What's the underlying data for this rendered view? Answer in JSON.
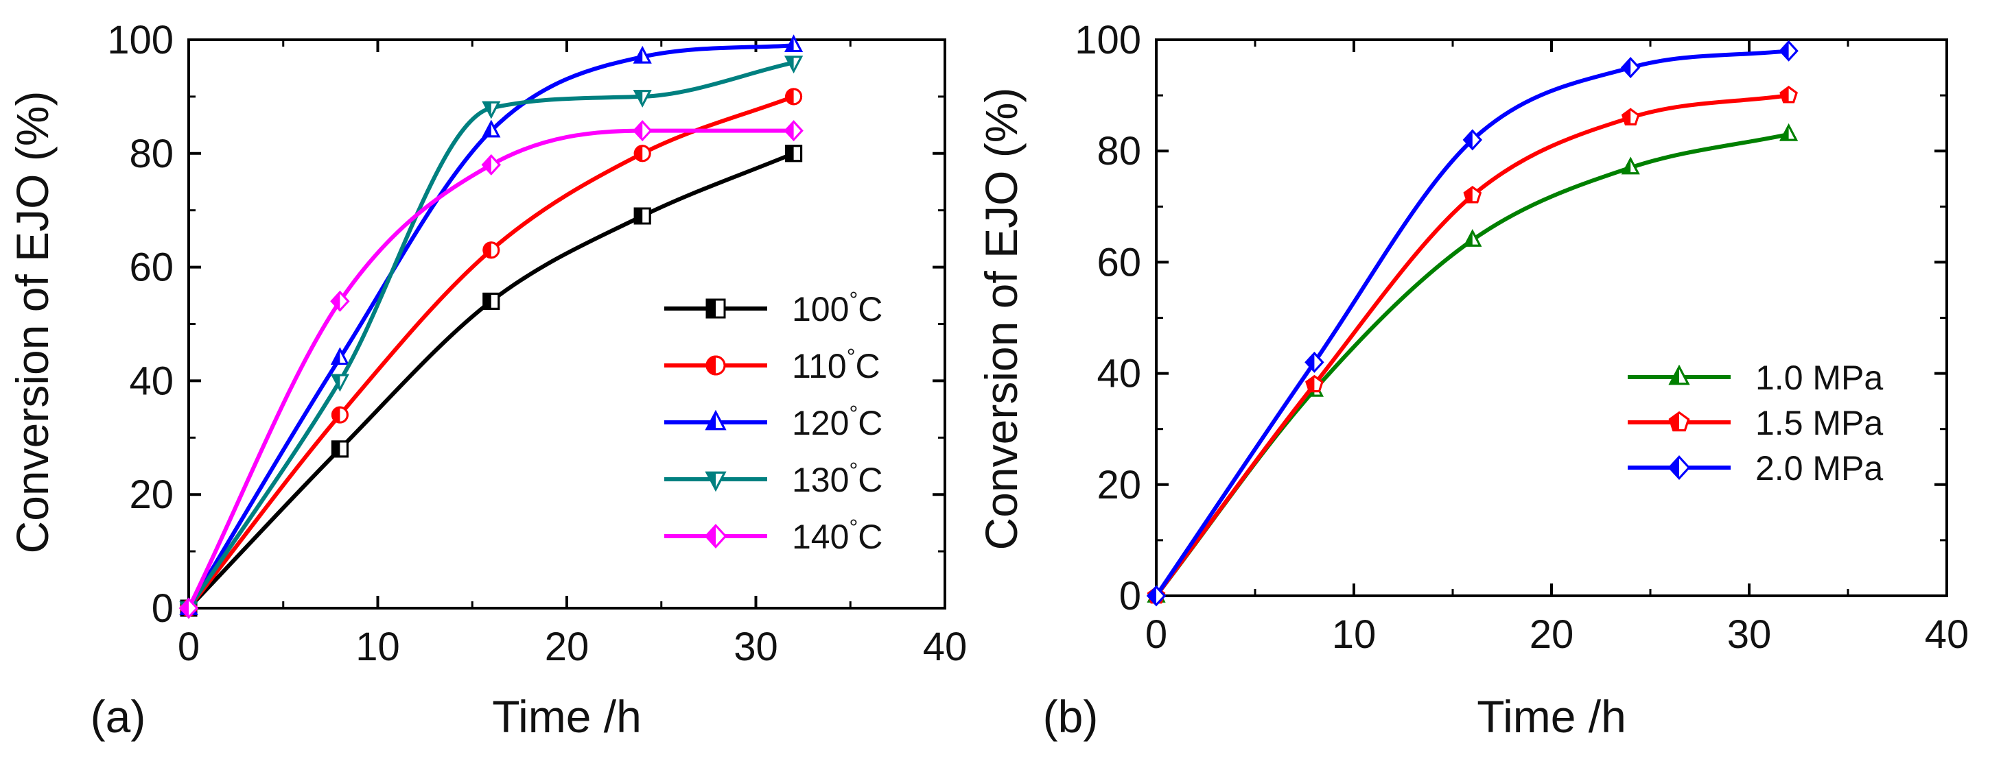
{
  "chart_data": [
    {
      "type": "scatter",
      "panel_label": "(a)",
      "xlabel": "Time /h",
      "ylabel": "Conversion of EJO (%)",
      "xlim": [
        0,
        40
      ],
      "ylim": [
        0,
        100
      ],
      "xticks": [
        0,
        10,
        20,
        30,
        40
      ],
      "yticks": [
        0,
        20,
        40,
        60,
        80,
        100
      ],
      "legend_position": "center-right",
      "series": [
        {
          "name": "100°C",
          "color": "#000000",
          "marker": "square-half",
          "x": [
            0,
            8,
            16,
            24,
            32
          ],
          "y": [
            0,
            28,
            54,
            69,
            80
          ]
        },
        {
          "name": "110°C",
          "color": "#ff0000",
          "marker": "circle-half",
          "x": [
            0,
            8,
            16,
            24,
            32
          ],
          "y": [
            0,
            34,
            63,
            80,
            90
          ]
        },
        {
          "name": "120°C",
          "color": "#0000ff",
          "marker": "triangle-up-half",
          "x": [
            0,
            8,
            16,
            24,
            32
          ],
          "y": [
            0,
            44,
            84,
            97,
            99
          ]
        },
        {
          "name": "130°C",
          "color": "#008080",
          "marker": "triangle-down-half",
          "x": [
            0,
            8,
            16,
            24,
            32
          ],
          "y": [
            0,
            40,
            88,
            90,
            96
          ]
        },
        {
          "name": "140°C",
          "color": "#ff00ff",
          "marker": "diamond-half",
          "x": [
            0,
            8,
            16,
            24,
            32
          ],
          "y": [
            0,
            54,
            78,
            84,
            84
          ]
        }
      ]
    },
    {
      "type": "scatter",
      "panel_label": "(b)",
      "xlabel": "Time /h",
      "ylabel": "Conversion of EJO (%)",
      "xlim": [
        0,
        40
      ],
      "ylim": [
        0,
        100
      ],
      "xticks": [
        0,
        10,
        20,
        30,
        40
      ],
      "yticks": [
        0,
        20,
        40,
        60,
        80,
        100
      ],
      "legend_position": "lower-right",
      "series": [
        {
          "name": "1.0 MPa",
          "color": "#008000",
          "marker": "triangle-up-half",
          "x": [
            0,
            8,
            16,
            24,
            32
          ],
          "y": [
            0,
            37,
            64,
            77,
            83
          ]
        },
        {
          "name": "1.5 MPa",
          "color": "#ff0000",
          "marker": "pentagon-half",
          "x": [
            0,
            8,
            16,
            24,
            32
          ],
          "y": [
            0,
            38,
            72,
            86,
            90
          ]
        },
        {
          "name": "2.0 MPa",
          "color": "#0000ff",
          "marker": "diamond-half",
          "x": [
            0,
            8,
            16,
            24,
            32
          ],
          "y": [
            0,
            42,
            82,
            95,
            98
          ]
        }
      ]
    }
  ]
}
